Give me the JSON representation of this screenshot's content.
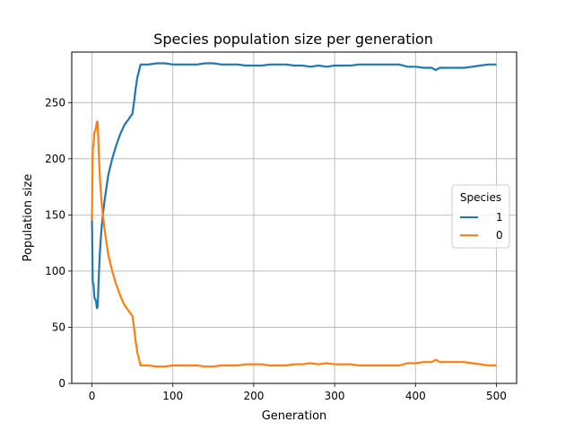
{
  "chart_data": {
    "type": "line",
    "title": "Species population size per generation",
    "xlabel": "Generation",
    "ylabel": "Population size",
    "xlim": [
      -25,
      525
    ],
    "ylim": [
      0,
      295
    ],
    "xticks": [
      0,
      100,
      200,
      300,
      400,
      500
    ],
    "yticks": [
      0,
      50,
      100,
      150,
      200,
      250
    ],
    "grid": true,
    "legend": {
      "title": "Species",
      "placement": "center-right"
    },
    "series": [
      {
        "name": "1",
        "color": "#1f77b4",
        "x": [
          0,
          1,
          2,
          3,
          4,
          5,
          6,
          7,
          8,
          9,
          10,
          12,
          15,
          18,
          20,
          25,
          30,
          35,
          40,
          45,
          50,
          52,
          54,
          56,
          58,
          60,
          70,
          80,
          90,
          100,
          110,
          120,
          130,
          140,
          150,
          160,
          170,
          180,
          190,
          200,
          210,
          220,
          230,
          240,
          250,
          260,
          270,
          280,
          290,
          300,
          310,
          320,
          330,
          340,
          350,
          360,
          370,
          380,
          390,
          400,
          410,
          420,
          425,
          430,
          440,
          450,
          460,
          470,
          480,
          490,
          500
        ],
        "y": [
          150,
          90,
          88,
          76,
          75,
          73,
          67,
          68,
          88,
          105,
          120,
          140,
          160,
          175,
          185,
          200,
          212,
          222,
          230,
          235,
          240,
          250,
          262,
          272,
          278,
          284,
          284,
          285,
          285,
          284,
          284,
          284,
          284,
          285,
          285,
          284,
          284,
          284,
          283,
          283,
          283,
          284,
          284,
          284,
          283,
          283,
          282,
          283,
          282,
          283,
          283,
          283,
          284,
          284,
          284,
          284,
          284,
          284,
          282,
          282,
          281,
          281,
          279,
          281,
          281,
          281,
          281,
          282,
          283,
          284,
          284
        ]
      },
      {
        "name": "0",
        "color": "#ff7f0e",
        "x": [
          0,
          1,
          2,
          3,
          4,
          5,
          6,
          7,
          8,
          9,
          10,
          12,
          15,
          18,
          20,
          25,
          30,
          35,
          40,
          45,
          50,
          52,
          54,
          56,
          58,
          60,
          70,
          80,
          90,
          100,
          110,
          120,
          130,
          140,
          150,
          160,
          170,
          180,
          190,
          200,
          210,
          220,
          230,
          240,
          250,
          260,
          270,
          280,
          290,
          300,
          310,
          320,
          330,
          340,
          350,
          360,
          370,
          380,
          390,
          400,
          410,
          420,
          425,
          430,
          440,
          450,
          460,
          470,
          480,
          490,
          500
        ],
        "y": [
          145,
          210,
          212,
          224,
          225,
          228,
          233,
          233,
          212,
          195,
          180,
          160,
          140,
          125,
          115,
          100,
          88,
          78,
          70,
          65,
          60,
          50,
          38,
          28,
          22,
          16,
          16,
          15,
          15,
          16,
          16,
          16,
          16,
          15,
          15,
          16,
          16,
          16,
          17,
          17,
          17,
          16,
          16,
          16,
          17,
          17,
          18,
          17,
          18,
          17,
          17,
          17,
          16,
          16,
          16,
          16,
          16,
          16,
          18,
          18,
          19,
          19,
          21,
          19,
          19,
          19,
          19,
          18,
          17,
          16,
          16
        ]
      }
    ]
  }
}
